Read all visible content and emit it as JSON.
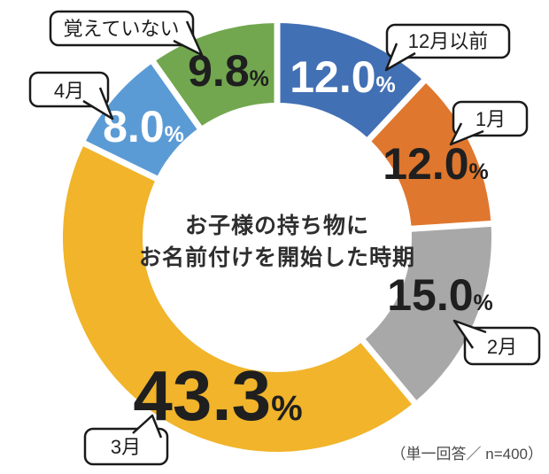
{
  "chart_data": {
    "type": "pie",
    "subtype": "donut",
    "title": "お子様の持ち物にお名前付けを開始した時期",
    "title_line1": "お子様の持ち物に",
    "title_line2": "お名前付けを開始した時期",
    "note": "（単一回答／ n=400）",
    "start_angle": "top",
    "direction": "clockwise",
    "legend": "callout-bubbles",
    "slices": [
      {
        "label": "12月以前",
        "value": 12.0,
        "color": "#4270B4",
        "value_color": "#FFFFFF"
      },
      {
        "label": "1月",
        "value": 12.0,
        "color": "#E0772E",
        "value_color": "#1F1F1F"
      },
      {
        "label": "2月",
        "value": 15.0,
        "color": "#A8A8A8",
        "value_color": "#1F1F1F"
      },
      {
        "label": "3月",
        "value": 43.3,
        "color": "#F1B42A",
        "value_color": "#1F1F1F"
      },
      {
        "label": "4月",
        "value": 8.0,
        "color": "#5B9BD5",
        "value_color": "#FFFFFF"
      },
      {
        "label": "覚えていない",
        "value": 9.8,
        "color": "#72A74F",
        "value_color": "#1F1F1F"
      }
    ]
  }
}
